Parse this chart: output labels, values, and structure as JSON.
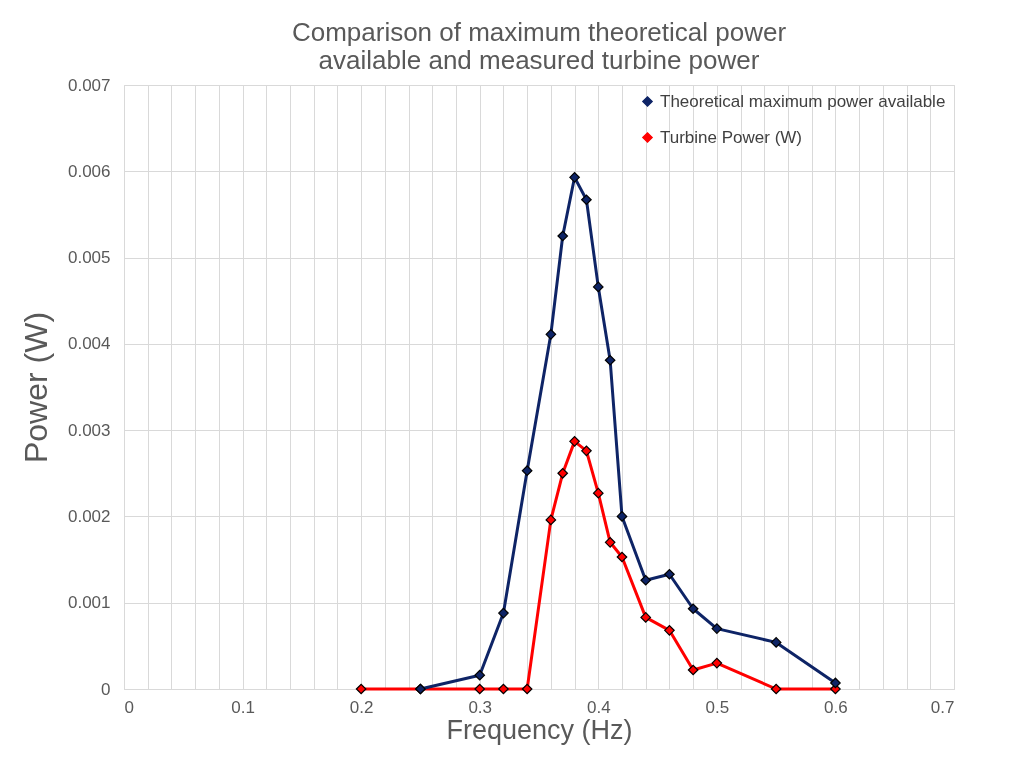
{
  "chart_data": {
    "type": "line",
    "title": "Comparison of maximum theoretical power available and measured turbine power",
    "xlabel": "Frequency (Hz)",
    "ylabel": "Power (W)",
    "series": [
      {
        "name": "Theoretical maximum power available",
        "color": "#0e2466",
        "x": [
          0.25,
          0.3,
          0.32,
          0.34,
          0.36,
          0.37,
          0.38,
          0.39,
          0.4,
          0.41,
          0.42,
          0.44,
          0.46,
          0.48,
          0.5,
          0.55,
          0.6
        ],
        "values": [
          0,
          0.00016,
          0.00088,
          0.00253,
          0.00411,
          0.00525,
          0.00593,
          0.00567,
          0.00466,
          0.00381,
          0.002,
          0.00126,
          0.00133,
          0.00093,
          0.0007,
          0.00054,
          7e-05
        ]
      },
      {
        "name": "Turbine Power (W)",
        "color": "#ff0000",
        "x": [
          0.2,
          0.25,
          0.3,
          0.32,
          0.34,
          0.36,
          0.37,
          0.38,
          0.39,
          0.4,
          0.41,
          0.42,
          0.44,
          0.46,
          0.48,
          0.5,
          0.55,
          0.6
        ],
        "values": [
          0,
          0,
          0,
          0,
          0,
          0.00196,
          0.0025,
          0.00287,
          0.00276,
          0.00227,
          0.0017,
          0.00153,
          0.00083,
          0.00068,
          0.00022,
          0.0003,
          0,
          0
        ]
      }
    ],
    "xlim": [
      0,
      0.7
    ],
    "xticks": [
      0,
      {
        "value": 0.02,
        "label": null
      },
      {
        "value": 0.04,
        "label": null
      },
      {
        "value": 0.06,
        "label": null
      },
      {
        "value": 0.08,
        "label": null
      },
      0.1,
      {
        "value": 0.12,
        "label": null
      },
      {
        "value": 0.14,
        "label": null
      },
      {
        "value": 0.16,
        "label": null
      },
      {
        "value": 0.18,
        "label": null
      },
      0.2,
      {
        "value": 0.22,
        "label": null
      },
      {
        "value": 0.24,
        "label": null
      },
      {
        "value": 0.26,
        "label": null
      },
      {
        "value": 0.28,
        "label": null
      },
      0.3,
      {
        "value": 0.32,
        "label": null
      },
      {
        "value": 0.34,
        "label": null
      },
      {
        "value": 0.36,
        "label": null
      },
      {
        "value": 0.38,
        "label": null
      },
      0.4,
      {
        "value": 0.42,
        "label": null
      },
      {
        "value": 0.44,
        "label": null
      },
      {
        "value": 0.46,
        "label": null
      },
      {
        "value": 0.48,
        "label": null
      },
      0.5,
      {
        "value": 0.52,
        "label": null
      },
      {
        "value": 0.54,
        "label": null
      },
      {
        "value": 0.56,
        "label": null
      },
      {
        "value": 0.58,
        "label": null
      },
      0.6,
      {
        "value": 0.62,
        "label": null
      },
      {
        "value": 0.64,
        "label": null
      },
      {
        "value": 0.66,
        "label": null
      },
      {
        "value": 0.68,
        "label": null
      },
      0.7
    ],
    "ylim": [
      0,
      0.007
    ],
    "yticks": [
      0,
      0.001,
      0.002,
      0.003,
      0.004,
      0.005,
      0.006,
      0.007
    ],
    "grid": true,
    "legend": "top right",
    "marker": "diamond",
    "line_style": "solid"
  }
}
